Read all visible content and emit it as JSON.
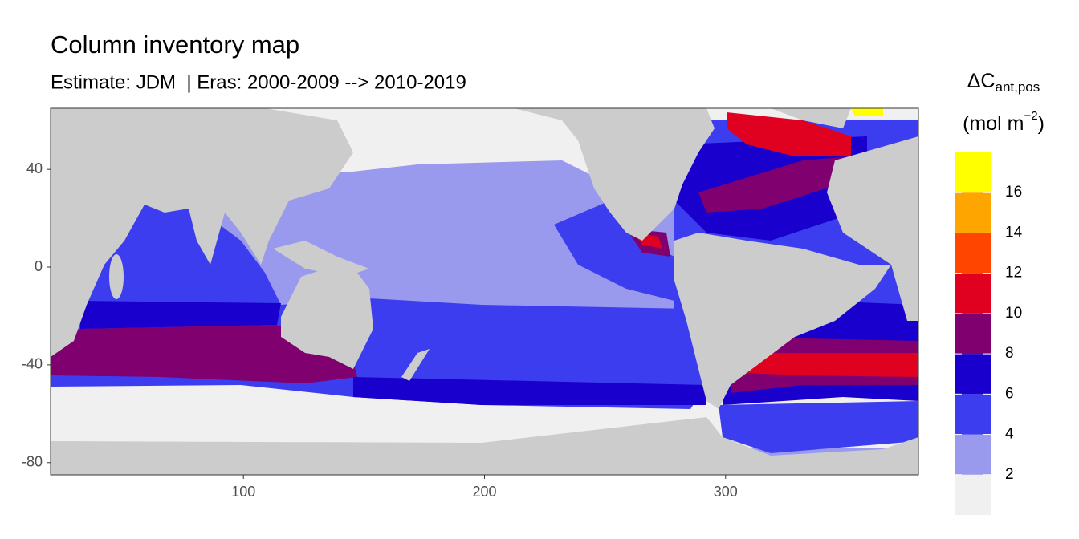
{
  "chart_data": {
    "type": "map",
    "title": "Column inventory map",
    "subtitle": "Estimate: JDM  | Eras: 2000-2009 --> 2010-2019",
    "xlim": [
      20,
      380
    ],
    "ylim": [
      -85,
      65
    ],
    "xticks": [
      100,
      200,
      300
    ],
    "yticks": [
      -80,
      -40,
      0,
      40
    ],
    "land_color": "#cccccc",
    "legend": {
      "title": "ΔC",
      "title_sub": "ant,pos",
      "unit": "(mol m",
      "unit_sup": "−2",
      "unit_end": ")",
      "lim": [
        0,
        18
      ],
      "ticks": [
        2,
        4,
        6,
        8,
        10,
        12,
        14,
        16
      ],
      "colors": [
        "#f0f0f0",
        "#9999ee",
        "#3d3df0",
        "#1a00cc",
        "#800070",
        "#e00020",
        "#ff4500",
        "#ffa500",
        "#ffff00"
      ]
    }
  }
}
